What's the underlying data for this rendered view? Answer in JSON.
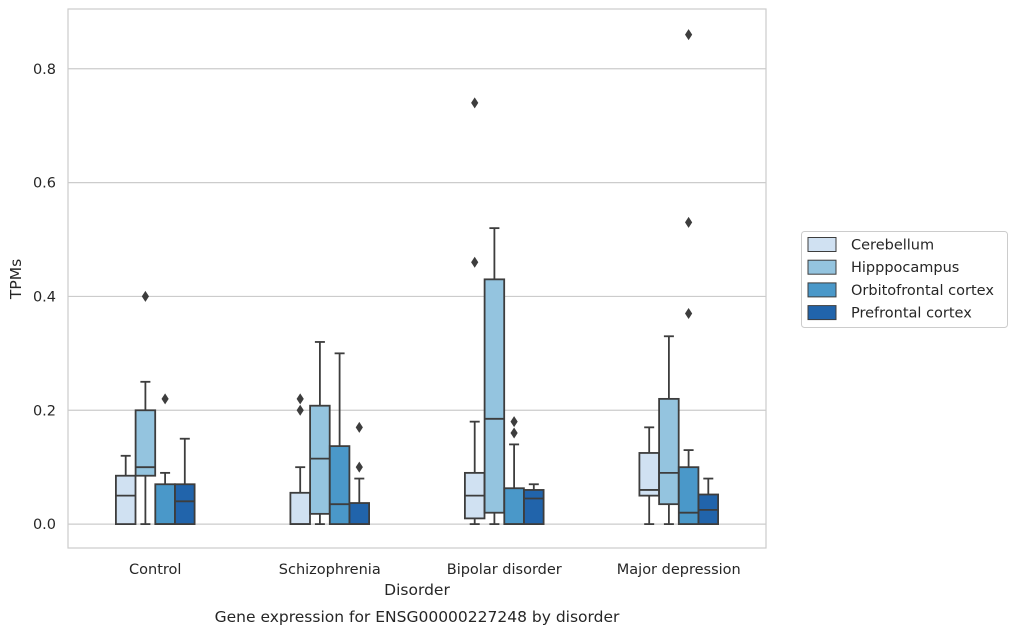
{
  "caption": "Gene expression for ENSG00000227248 by disorder",
  "chart_data": {
    "type": "box",
    "title": "",
    "xlabel": "Disorder",
    "ylabel": "TPMs",
    "ylim": [
      -0.042,
      0.905
    ],
    "yticks": [
      0.0,
      0.2,
      0.4,
      0.6,
      0.8
    ],
    "ytick_labels": [
      "0.0",
      "0.2",
      "0.4",
      "0.6",
      "0.8"
    ],
    "grid": "horizontal",
    "legend_position": "center-right-outside",
    "categories": [
      "Control",
      "Schizophrenia",
      "Bipolar disorder",
      "Major depression"
    ],
    "series": [
      {
        "name": "Cerebellum",
        "color": "#d0e1f2",
        "boxes": [
          {
            "whislo": 0.0,
            "q1": 0.0,
            "med": 0.05,
            "q3": 0.085,
            "whishi": 0.12,
            "fliers": []
          },
          {
            "whislo": 0.0,
            "q1": 0.0,
            "med": 0.0,
            "q3": 0.055,
            "whishi": 0.1,
            "fliers": [
              0.2,
              0.22
            ]
          },
          {
            "whislo": 0.0,
            "q1": 0.01,
            "med": 0.05,
            "q3": 0.09,
            "whishi": 0.18,
            "fliers": [
              0.46,
              0.74
            ]
          },
          {
            "whislo": 0.0,
            "q1": 0.05,
            "med": 0.06,
            "q3": 0.125,
            "whishi": 0.17,
            "fliers": []
          }
        ]
      },
      {
        "name": "Hipppocampus",
        "color": "#94c4df",
        "boxes": [
          {
            "whislo": 0.0,
            "q1": 0.085,
            "med": 0.1,
            "q3": 0.2,
            "whishi": 0.25,
            "fliers": [
              0.4
            ]
          },
          {
            "whislo": 0.0,
            "q1": 0.018,
            "med": 0.115,
            "q3": 0.208,
            "whishi": 0.32,
            "fliers": []
          },
          {
            "whislo": 0.0,
            "q1": 0.02,
            "med": 0.185,
            "q3": 0.43,
            "whishi": 0.52,
            "fliers": []
          },
          {
            "whislo": 0.0,
            "q1": 0.035,
            "med": 0.09,
            "q3": 0.22,
            "whishi": 0.33,
            "fliers": []
          }
        ]
      },
      {
        "name": "Orbitofrontal cortex",
        "color": "#4a98c9",
        "boxes": [
          {
            "whislo": 0.0,
            "q1": 0.0,
            "med": 0.0,
            "q3": 0.07,
            "whishi": 0.09,
            "fliers": [
              0.22
            ]
          },
          {
            "whislo": 0.0,
            "q1": 0.0,
            "med": 0.035,
            "q3": 0.137,
            "whishi": 0.3,
            "fliers": []
          },
          {
            "whislo": 0.0,
            "q1": 0.0,
            "med": 0.0,
            "q3": 0.063,
            "whishi": 0.14,
            "fliers": [
              0.16,
              0.18
            ]
          },
          {
            "whislo": 0.0,
            "q1": 0.0,
            "med": 0.02,
            "q3": 0.1,
            "whishi": 0.13,
            "fliers": [
              0.37,
              0.53,
              0.86
            ]
          }
        ]
      },
      {
        "name": "Prefrontal cortex",
        "color": "#2164ab",
        "boxes": [
          {
            "whislo": 0.0,
            "q1": 0.0,
            "med": 0.04,
            "q3": 0.07,
            "whishi": 0.15,
            "fliers": []
          },
          {
            "whislo": 0.0,
            "q1": 0.0,
            "med": 0.0,
            "q3": 0.037,
            "whishi": 0.08,
            "fliers": [
              0.1,
              0.17
            ]
          },
          {
            "whislo": 0.0,
            "q1": 0.0,
            "med": 0.045,
            "q3": 0.06,
            "whishi": 0.07,
            "fliers": []
          },
          {
            "whislo": 0.0,
            "q1": 0.0,
            "med": 0.025,
            "q3": 0.052,
            "whishi": 0.08,
            "fliers": []
          }
        ]
      }
    ]
  }
}
